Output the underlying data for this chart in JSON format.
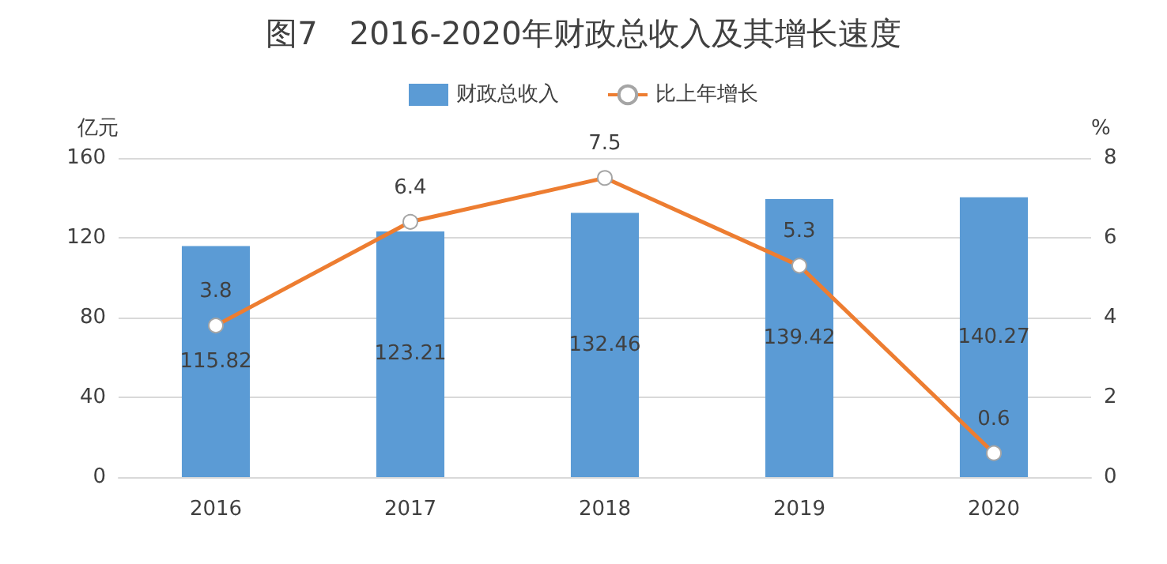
{
  "chart_data": {
    "type": "bar",
    "title": "图7　2016-2020年财政总收入及其增长速度",
    "categories": [
      "2016",
      "2017",
      "2018",
      "2019",
      "2020"
    ],
    "series": [
      {
        "name": "财政总收入",
        "color": "#5b9bd5",
        "values": [
          115.82,
          123.21,
          132.46,
          139.42,
          140.27
        ]
      },
      {
        "name": "比上年增长",
        "type": "line",
        "axis": "y2",
        "color": "#ed7d31",
        "marker": "circle",
        "values": [
          3.8,
          6.4,
          7.5,
          5.3,
          0.6
        ]
      }
    ],
    "ylabel": "亿元",
    "y2label": "%",
    "ylim": [
      0,
      160
    ],
    "yticks": [
      0,
      40,
      80,
      120,
      160
    ],
    "y2lim": [
      0,
      8
    ],
    "y2ticks": [
      0,
      2,
      4,
      6,
      8
    ],
    "grid": "y",
    "legend": "top",
    "data_labels": true
  }
}
